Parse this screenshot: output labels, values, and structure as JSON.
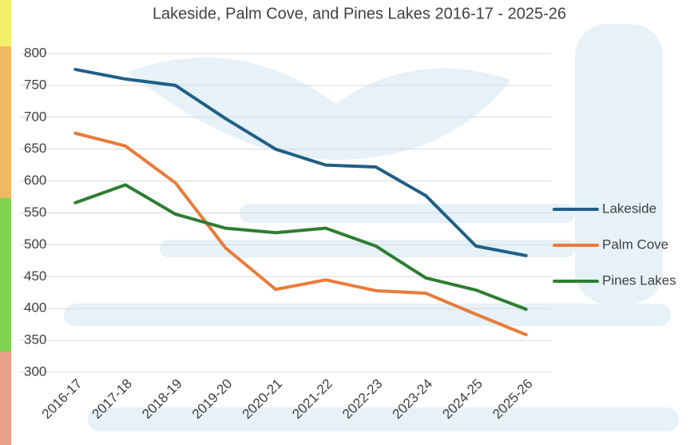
{
  "chart_data": {
    "type": "line",
    "title": "Lakeside, Palm Cove, and Pines Lakes 2016-17 - 2025-26",
    "categories": [
      "2016-17",
      "2017-18",
      "2018-19",
      "2019-20",
      "2020-21",
      "2021-22",
      "2022-23",
      "2023-24",
      "2024-25",
      "2025-26"
    ],
    "series": [
      {
        "name": "Lakeside",
        "color": "#1f5f87",
        "values": [
          775,
          760,
          750,
          698,
          650,
          625,
          622,
          577,
          498,
          483
        ]
      },
      {
        "name": "Palm Cove",
        "color": "#e97b3a",
        "values": [
          675,
          655,
          597,
          495,
          430,
          445,
          428,
          424,
          391,
          359
        ]
      },
      {
        "name": "Pines Lakes",
        "color": "#2e7d32",
        "values": [
          566,
          594,
          548,
          526,
          519,
          526,
          498,
          448,
          429,
          399
        ]
      }
    ],
    "ylim": [
      300,
      800
    ],
    "yticks": [
      300,
      350,
      400,
      450,
      500,
      550,
      600,
      650,
      700,
      750,
      800
    ],
    "grid": true,
    "legend": "right"
  }
}
